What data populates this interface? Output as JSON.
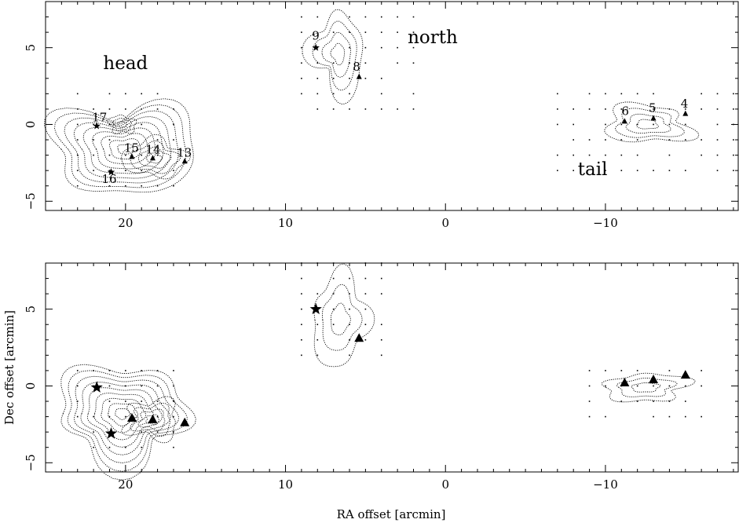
{
  "chart_data": {
    "type": "scatter",
    "xlabel": "RA offset [arcmin]",
    "ylabel": "Dec offset [arcmin]",
    "xlim": [
      25,
      -18.3
    ],
    "ylim": [
      -5.6,
      8.0
    ],
    "xticks": [
      20,
      10,
      0,
      -10
    ],
    "yticks": [
      -5,
      0,
      5
    ],
    "tick_labels": {
      "x": [
        "20",
        "10",
        "0",
        "−10"
      ],
      "y": [
        "−5",
        "0",
        "5"
      ]
    },
    "grid": false,
    "region_labels": [
      {
        "text": "head",
        "x": 20.0,
        "y": 3.6
      },
      {
        "text": "north",
        "x": 0.8,
        "y": 5.3
      },
      {
        "text": "tail",
        "x": -9.2,
        "y": -3.3
      }
    ],
    "panels": [
      {
        "name": "top",
        "sources_labeled": true,
        "sources": [
          {
            "id": "17",
            "x": 21.8,
            "y": -0.1,
            "marker": "star"
          },
          {
            "id": "16",
            "x": 20.9,
            "y": -3.1,
            "marker": "star"
          },
          {
            "id": "15",
            "x": 19.6,
            "y": -2.1,
            "marker": "triangle"
          },
          {
            "id": "14",
            "x": 18.3,
            "y": -2.2,
            "marker": "triangle"
          },
          {
            "id": "13",
            "x": 16.3,
            "y": -2.4,
            "marker": "triangle"
          },
          {
            "id": "9",
            "x": 8.1,
            "y": 5.0,
            "marker": "star"
          },
          {
            "id": "8",
            "x": 5.4,
            "y": 3.1,
            "marker": "triangle"
          },
          {
            "id": "6",
            "x": -11.2,
            "y": 0.2,
            "marker": "triangle"
          },
          {
            "id": "5",
            "x": -13.0,
            "y": 0.4,
            "marker": "triangle"
          },
          {
            "id": "4",
            "x": -15.0,
            "y": 0.7,
            "marker": "triangle"
          }
        ]
      },
      {
        "name": "bottom",
        "sources_labeled": false,
        "sources": [
          {
            "x": 21.8,
            "y": -0.1,
            "marker": "star"
          },
          {
            "x": 20.9,
            "y": -3.1,
            "marker": "star"
          },
          {
            "x": 19.6,
            "y": -2.1,
            "marker": "triangle"
          },
          {
            "x": 18.3,
            "y": -2.2,
            "marker": "triangle"
          },
          {
            "x": 16.3,
            "y": -2.4,
            "marker": "triangle"
          },
          {
            "x": 8.1,
            "y": 5.0,
            "marker": "star"
          },
          {
            "x": 5.4,
            "y": 3.1,
            "marker": "triangle"
          },
          {
            "x": -11.2,
            "y": 0.2,
            "marker": "triangle"
          },
          {
            "x": -13.0,
            "y": 0.4,
            "marker": "triangle"
          },
          {
            "x": -15.0,
            "y": 0.7,
            "marker": "triangle"
          }
        ]
      }
    ]
  }
}
